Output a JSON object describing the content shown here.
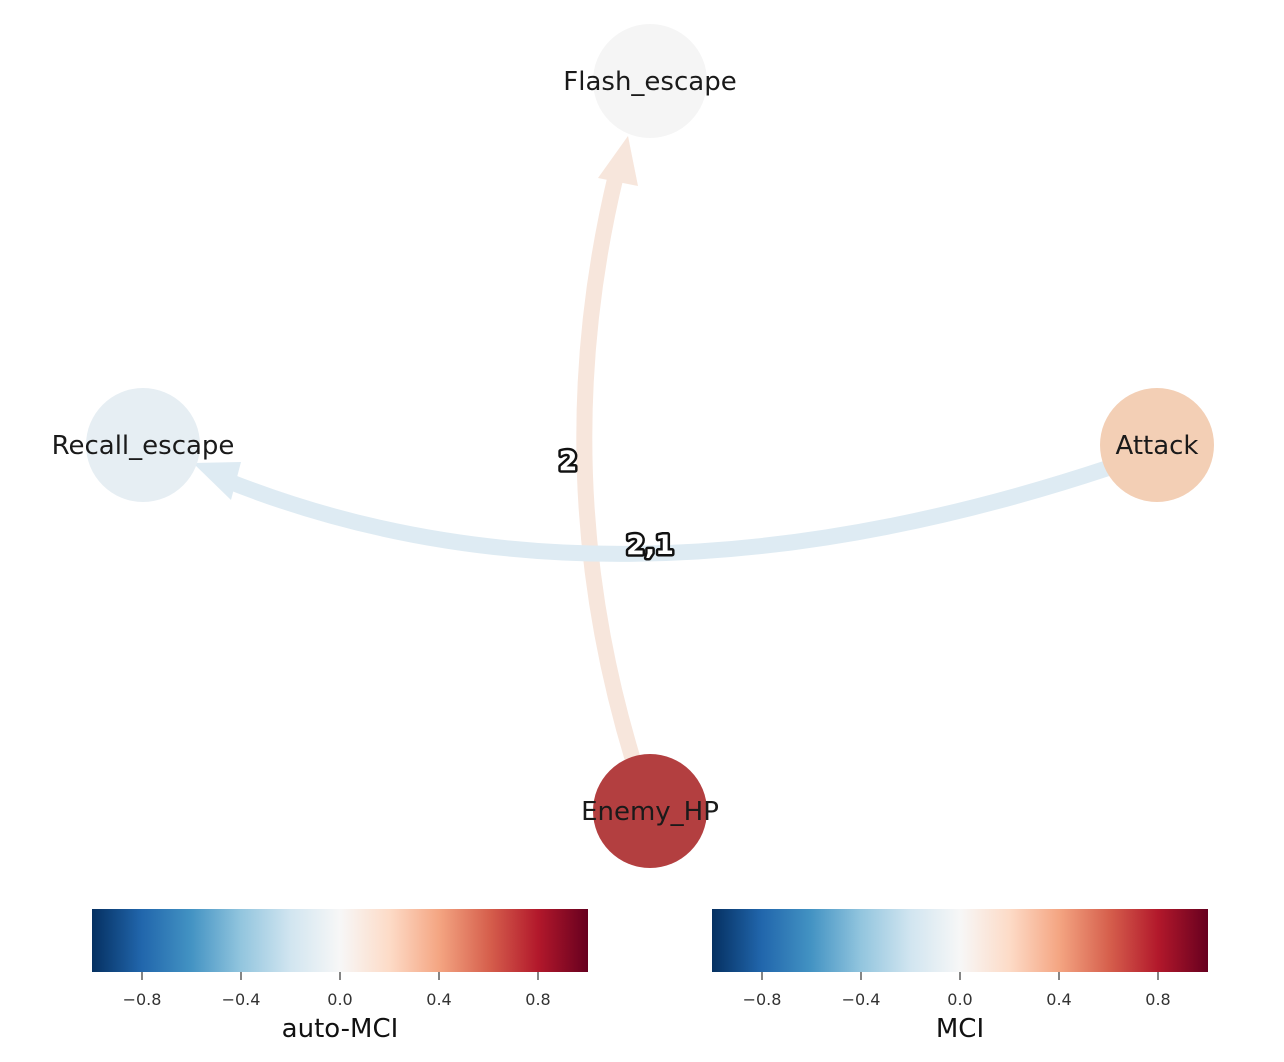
{
  "diagram": {
    "nodes": [
      {
        "id": "flash",
        "label": "Flash_escape",
        "color": "#f5f5f5"
      },
      {
        "id": "recall",
        "label": "Recall_escape",
        "color": "#e6eef3"
      },
      {
        "id": "attack",
        "label": "Attack",
        "color": "#f3cfb5"
      },
      {
        "id": "enemy",
        "label": "Enemy_HP",
        "color": "#b33f40"
      }
    ],
    "edges": [
      {
        "from": "enemy",
        "to": "flash",
        "label": "2",
        "color": "#f7e6dc"
      },
      {
        "from": "attack",
        "to": "recall",
        "label": "2,1",
        "color": "#deebf3"
      }
    ]
  },
  "colorbars": [
    {
      "label": "auto-MCI",
      "ticks": [
        "−0.8",
        "−0.4",
        "0.0",
        "0.4",
        "0.8"
      ],
      "range": [
        -1,
        1
      ]
    },
    {
      "label": "MCI",
      "ticks": [
        "−0.8",
        "−0.4",
        "0.0",
        "0.4",
        "0.8"
      ],
      "range": [
        -1,
        1
      ]
    }
  ],
  "colormap": [
    "#053061",
    "#2166ac",
    "#4393c3",
    "#92c5de",
    "#d1e5f0",
    "#f7f7f7",
    "#fddbc7",
    "#f4a582",
    "#d6604d",
    "#b2182b",
    "#67001f"
  ]
}
